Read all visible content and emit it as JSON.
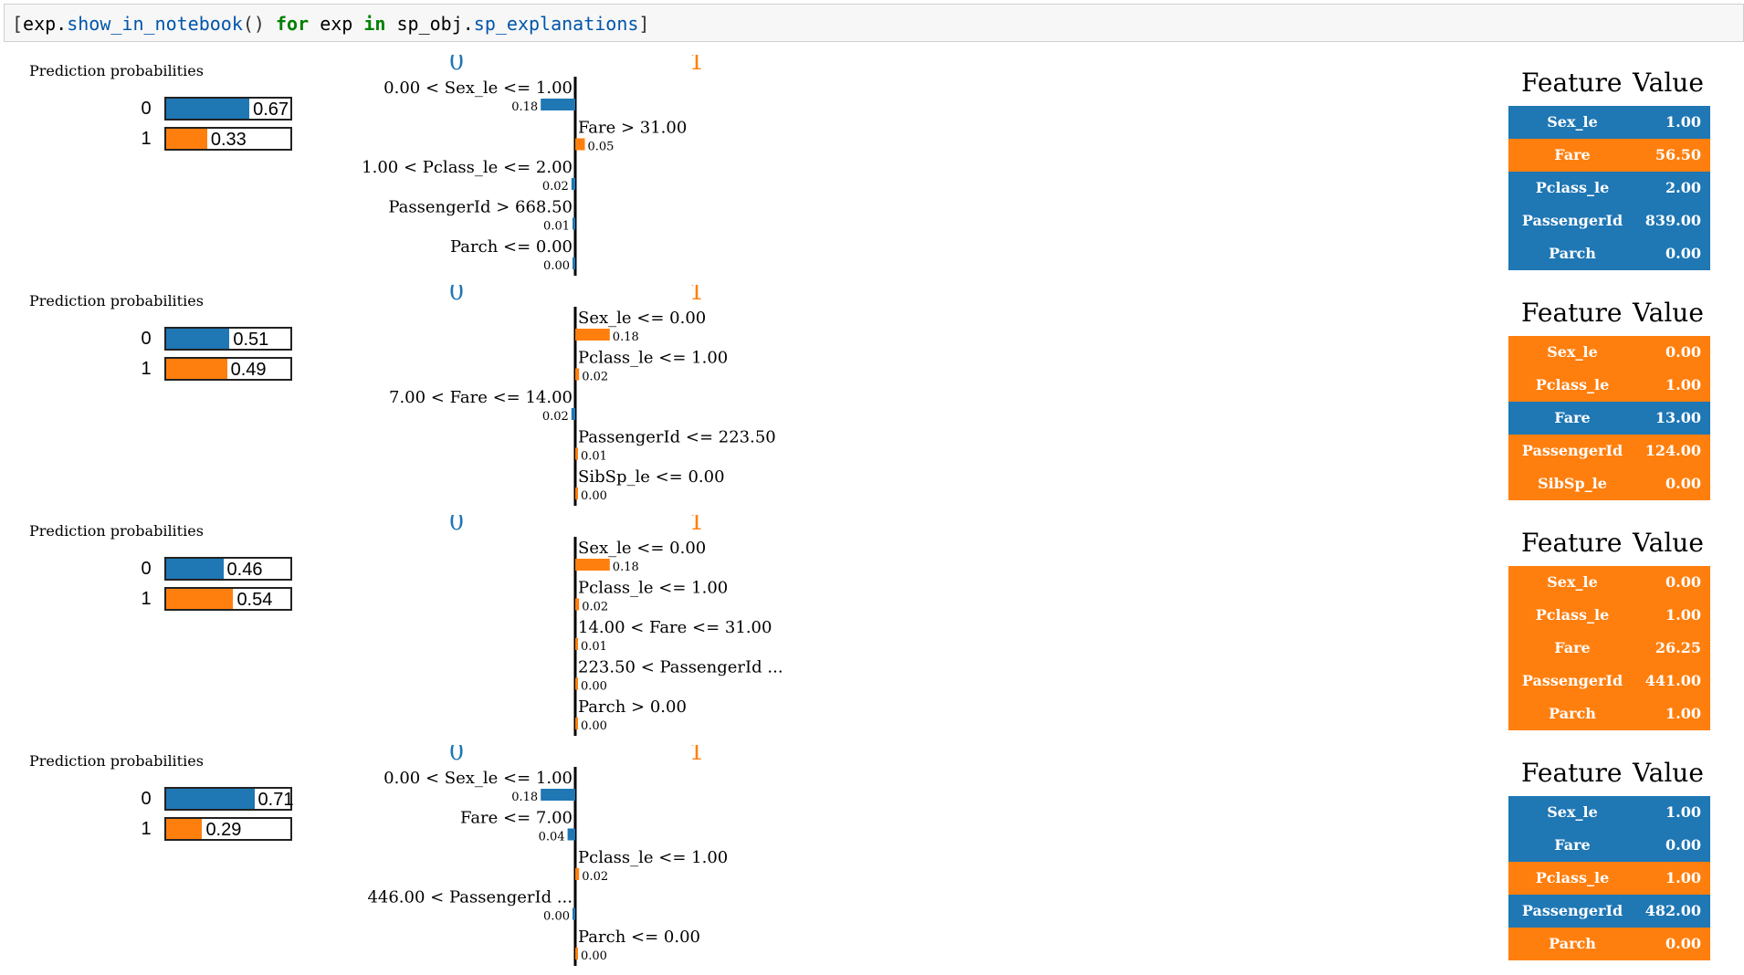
{
  "colors": {
    "class0": "#1f77b4",
    "class1": "#ff7f0e"
  },
  "code": {
    "prefix": "[",
    "exp1": "exp.",
    "fn1": "show_in_notebook",
    "call": "()",
    "kw_for": "for",
    "exp2": "exp",
    "kw_in": "in",
    "obj": "sp_obj.",
    "attr": "sp_explanations",
    "suffix": "]"
  },
  "explanations": [
    {
      "pp_title": "Prediction probabilities",
      "probs": [
        {
          "cls": "0",
          "value": 0.67,
          "label": "0.67"
        },
        {
          "cls": "1",
          "value": 0.33,
          "label": "0.33"
        }
      ],
      "chart": {
        "class_left": "0",
        "class_right": "1",
        "features": [
          {
            "label": "0.00 < Sex_le <= 1.00",
            "weight": 0.18,
            "weight_label": "0.18",
            "cls": 0
          },
          {
            "label": "Fare > 31.00",
            "weight": 0.05,
            "weight_label": "0.05",
            "cls": 1
          },
          {
            "label": "1.00 < Pclass_le <= 2.00",
            "weight": 0.02,
            "weight_label": "0.02",
            "cls": 0
          },
          {
            "label": "PassengerId > 668.50",
            "weight": 0.01,
            "weight_label": "0.01",
            "cls": 0
          },
          {
            "label": "Parch <= 0.00",
            "weight": 0.0,
            "weight_label": "0.00",
            "cls": 0
          }
        ]
      },
      "table": {
        "feature_header": "Feature",
        "value_header": "Value",
        "rows": [
          {
            "feature": "Sex_le",
            "value": "1.00",
            "cls": 0
          },
          {
            "feature": "Fare",
            "value": "56.50",
            "cls": 1
          },
          {
            "feature": "Pclass_le",
            "value": "2.00",
            "cls": 0
          },
          {
            "feature": "PassengerId",
            "value": "839.00",
            "cls": 0
          },
          {
            "feature": "Parch",
            "value": "0.00",
            "cls": 0
          }
        ]
      }
    },
    {
      "pp_title": "Prediction probabilities",
      "probs": [
        {
          "cls": "0",
          "value": 0.51,
          "label": "0.51"
        },
        {
          "cls": "1",
          "value": 0.49,
          "label": "0.49"
        }
      ],
      "chart": {
        "class_left": "0",
        "class_right": "1",
        "features": [
          {
            "label": "Sex_le <= 0.00",
            "weight": 0.18,
            "weight_label": "0.18",
            "cls": 1
          },
          {
            "label": "Pclass_le <= 1.00",
            "weight": 0.02,
            "weight_label": "0.02",
            "cls": 1
          },
          {
            "label": "7.00 < Fare <= 14.00",
            "weight": 0.02,
            "weight_label": "0.02",
            "cls": 0
          },
          {
            "label": "PassengerId <= 223.50",
            "weight": 0.01,
            "weight_label": "0.01",
            "cls": 1
          },
          {
            "label": "SibSp_le <= 0.00",
            "weight": 0.0,
            "weight_label": "0.00",
            "cls": 1
          }
        ]
      },
      "table": {
        "feature_header": "Feature",
        "value_header": "Value",
        "rows": [
          {
            "feature": "Sex_le",
            "value": "0.00",
            "cls": 1
          },
          {
            "feature": "Pclass_le",
            "value": "1.00",
            "cls": 1
          },
          {
            "feature": "Fare",
            "value": "13.00",
            "cls": 0
          },
          {
            "feature": "PassengerId",
            "value": "124.00",
            "cls": 1
          },
          {
            "feature": "SibSp_le",
            "value": "0.00",
            "cls": 1
          }
        ]
      }
    },
    {
      "pp_title": "Prediction probabilities",
      "probs": [
        {
          "cls": "0",
          "value": 0.46,
          "label": "0.46"
        },
        {
          "cls": "1",
          "value": 0.54,
          "label": "0.54"
        }
      ],
      "chart": {
        "class_left": "0",
        "class_right": "1",
        "features": [
          {
            "label": "Sex_le <= 0.00",
            "weight": 0.18,
            "weight_label": "0.18",
            "cls": 1
          },
          {
            "label": "Pclass_le <= 1.00",
            "weight": 0.02,
            "weight_label": "0.02",
            "cls": 1
          },
          {
            "label": "14.00 < Fare <= 31.00",
            "weight": 0.01,
            "weight_label": "0.01",
            "cls": 1
          },
          {
            "label": "223.50 < PassengerId ...",
            "weight": 0.0,
            "weight_label": "0.00",
            "cls": 1
          },
          {
            "label": "Parch > 0.00",
            "weight": 0.0,
            "weight_label": "0.00",
            "cls": 1
          }
        ]
      },
      "table": {
        "feature_header": "Feature",
        "value_header": "Value",
        "rows": [
          {
            "feature": "Sex_le",
            "value": "0.00",
            "cls": 1
          },
          {
            "feature": "Pclass_le",
            "value": "1.00",
            "cls": 1
          },
          {
            "feature": "Fare",
            "value": "26.25",
            "cls": 1
          },
          {
            "feature": "PassengerId",
            "value": "441.00",
            "cls": 1
          },
          {
            "feature": "Parch",
            "value": "1.00",
            "cls": 1
          }
        ]
      }
    },
    {
      "pp_title": "Prediction probabilities",
      "probs": [
        {
          "cls": "0",
          "value": 0.71,
          "label": "0.71"
        },
        {
          "cls": "1",
          "value": 0.29,
          "label": "0.29"
        }
      ],
      "chart": {
        "class_left": "0",
        "class_right": "1",
        "features": [
          {
            "label": "0.00 < Sex_le <= 1.00",
            "weight": 0.18,
            "weight_label": "0.18",
            "cls": 0
          },
          {
            "label": "Fare <= 7.00",
            "weight": 0.04,
            "weight_label": "0.04",
            "cls": 0
          },
          {
            "label": "Pclass_le <= 1.00",
            "weight": 0.02,
            "weight_label": "0.02",
            "cls": 1
          },
          {
            "label": "446.00 < PassengerId ...",
            "weight": 0.0,
            "weight_label": "0.00",
            "cls": 0
          },
          {
            "label": "Parch <= 0.00",
            "weight": 0.0,
            "weight_label": "0.00",
            "cls": 1
          }
        ]
      },
      "table": {
        "feature_header": "Feature",
        "value_header": "Value",
        "rows": [
          {
            "feature": "Sex_le",
            "value": "1.00",
            "cls": 0
          },
          {
            "feature": "Fare",
            "value": "0.00",
            "cls": 0
          },
          {
            "feature": "Pclass_le",
            "value": "1.00",
            "cls": 1
          },
          {
            "feature": "PassengerId",
            "value": "482.00",
            "cls": 0
          },
          {
            "feature": "Parch",
            "value": "0.00",
            "cls": 1
          }
        ]
      }
    }
  ]
}
